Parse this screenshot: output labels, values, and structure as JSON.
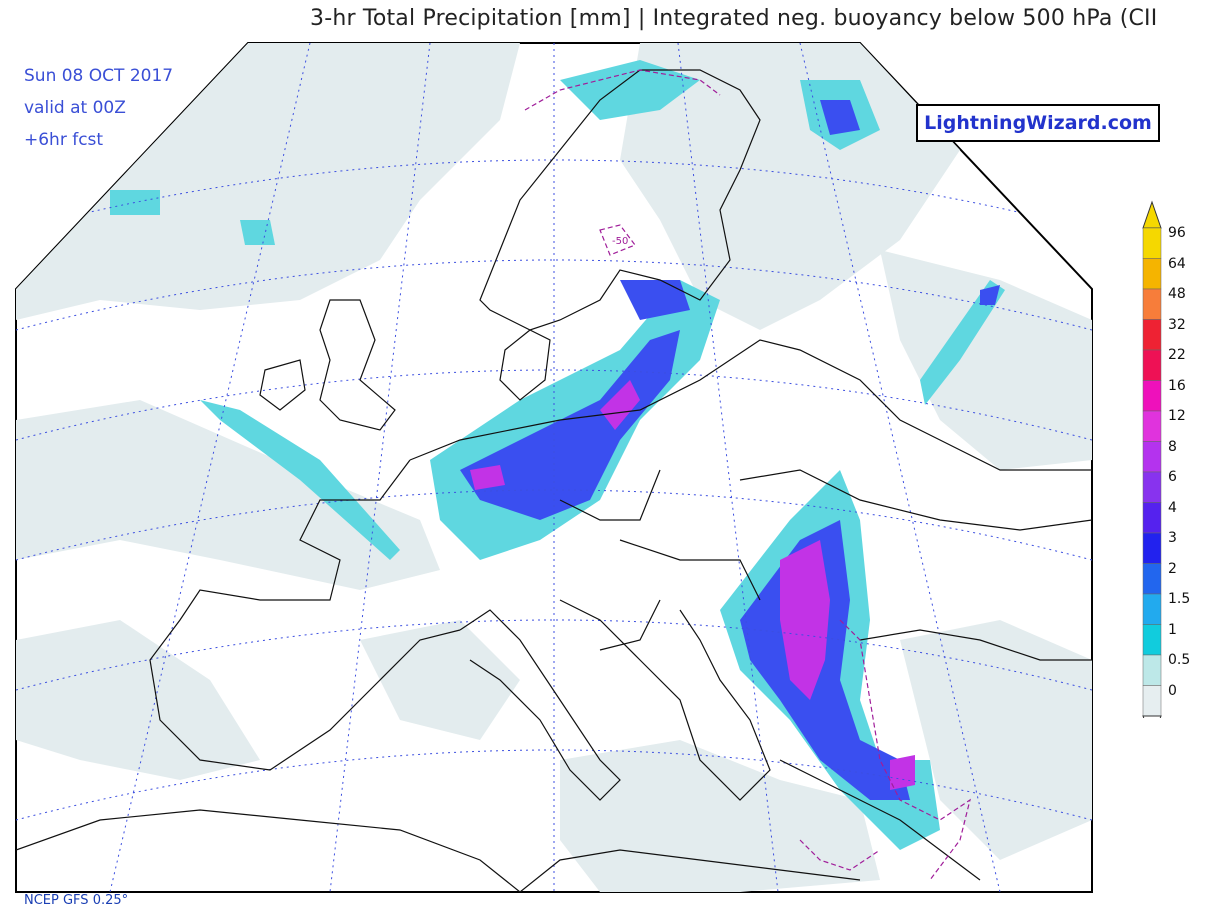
{
  "header": {
    "title": "3-hr Total Precipitation [mm] | Integrated neg. buoyancy below 500 hPa (CII"
  },
  "info": {
    "date": "Sun 08 OCT 2017",
    "valid": "valid at 00Z",
    "forecast": "+6hr fcst"
  },
  "brand": {
    "label": "LightningWizard.com"
  },
  "footer": {
    "model": "NCEP GFS 0.25°"
  },
  "map": {
    "contour_label": "-50",
    "colors": {
      "land_outline": "#111111",
      "graticule": "#3c4fe0",
      "cin_contour": "#a01e9a"
    }
  },
  "legend": {
    "levels": [
      {
        "value": "96",
        "color": "#f5d800"
      },
      {
        "value": "64",
        "color": "#f5b400"
      },
      {
        "value": "48",
        "color": "#f77d3a"
      },
      {
        "value": "32",
        "color": "#ee2233"
      },
      {
        "value": "22",
        "color": "#ee1155"
      },
      {
        "value": "16",
        "color": "#ee11bb"
      },
      {
        "value": "12",
        "color": "#e033dd"
      },
      {
        "value": "8",
        "color": "#b433ee"
      },
      {
        "value": "6",
        "color": "#8833ee"
      },
      {
        "value": "4",
        "color": "#5522ee"
      },
      {
        "value": "3",
        "color": "#2222ee"
      },
      {
        "value": "2",
        "color": "#2266ee"
      },
      {
        "value": "1.5",
        "color": "#22aaee"
      },
      {
        "value": "1",
        "color": "#11ccdd"
      },
      {
        "value": "0.5",
        "color": "#bde8e8"
      },
      {
        "value": "0",
        "color": "#e6eef0"
      }
    ]
  }
}
